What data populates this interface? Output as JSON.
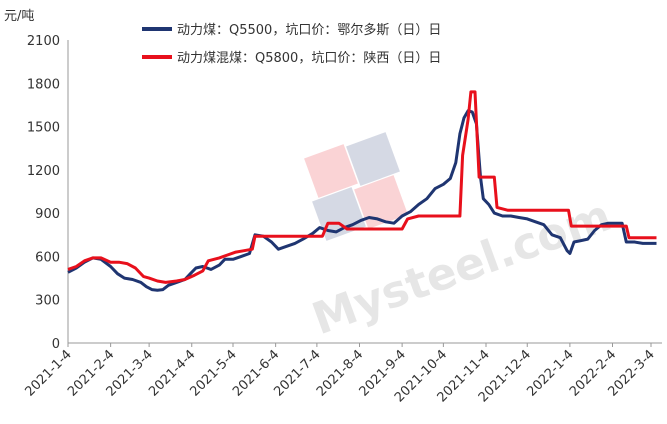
{
  "chart_data": {
    "type": "line",
    "y_unit_label": "元/吨",
    "ylim": [
      0,
      2100
    ],
    "y_ticks": [
      "0",
      "300",
      "600",
      "900",
      "1200",
      "1500",
      "1800",
      "2100"
    ],
    "x_ticks": [
      "2021-1-4",
      "2021-2-4",
      "2021-3-4",
      "2021-4-4",
      "2021-5-4",
      "2021-6-4",
      "2021-7-4",
      "2021-8-4",
      "2021-9-4",
      "2021-10-4",
      "2021-11-4",
      "2021-12-4",
      "2022-1-4",
      "2022-2-4",
      "2022-3-4"
    ],
    "grid": false,
    "legend_position": "top",
    "series": [
      {
        "name": "动力煤：Q5500，坑口价：鄂尔多斯（日）日",
        "color": "#1f3571",
        "points": [
          [
            "2021-01-04",
            490
          ],
          [
            "2021-01-10",
            520
          ],
          [
            "2021-01-16",
            560
          ],
          [
            "2021-01-22",
            590
          ],
          [
            "2021-01-28",
            580
          ],
          [
            "2021-02-04",
            530
          ],
          [
            "2021-02-09",
            480
          ],
          [
            "2021-02-14",
            450
          ],
          [
            "2021-02-20",
            440
          ],
          [
            "2021-02-26",
            420
          ],
          [
            "2021-03-02",
            390
          ],
          [
            "2021-03-06",
            370
          ],
          [
            "2021-03-10",
            365
          ],
          [
            "2021-03-14",
            370
          ],
          [
            "2021-03-18",
            400
          ],
          [
            "2021-03-24",
            420
          ],
          [
            "2021-03-30",
            440
          ],
          [
            "2021-04-03",
            480
          ],
          [
            "2021-04-07",
            520
          ],
          [
            "2021-04-12",
            530
          ],
          [
            "2021-04-18",
            510
          ],
          [
            "2021-04-24",
            540
          ],
          [
            "2021-04-28",
            580
          ],
          [
            "2021-05-04",
            580
          ],
          [
            "2021-05-10",
            600
          ],
          [
            "2021-05-16",
            620
          ],
          [
            "2021-05-20",
            750
          ],
          [
            "2021-05-26",
            740
          ],
          [
            "2021-06-01",
            700
          ],
          [
            "2021-06-06",
            650
          ],
          [
            "2021-06-12",
            670
          ],
          [
            "2021-06-18",
            690
          ],
          [
            "2021-06-24",
            720
          ],
          [
            "2021-07-01",
            760
          ],
          [
            "2021-07-06",
            800
          ],
          [
            "2021-07-12",
            780
          ],
          [
            "2021-07-18",
            770
          ],
          [
            "2021-07-24",
            800
          ],
          [
            "2021-07-30",
            820
          ],
          [
            "2021-08-05",
            850
          ],
          [
            "2021-08-11",
            870
          ],
          [
            "2021-08-17",
            860
          ],
          [
            "2021-08-23",
            840
          ],
          [
            "2021-08-29",
            830
          ],
          [
            "2021-09-04",
            880
          ],
          [
            "2021-09-10",
            910
          ],
          [
            "2021-09-16",
            960
          ],
          [
            "2021-09-22",
            1000
          ],
          [
            "2021-09-28",
            1070
          ],
          [
            "2021-10-04",
            1100
          ],
          [
            "2021-10-09",
            1140
          ],
          [
            "2021-10-13",
            1250
          ],
          [
            "2021-10-16",
            1450
          ],
          [
            "2021-10-19",
            1560
          ],
          [
            "2021-10-22",
            1610
          ],
          [
            "2021-10-25",
            1600
          ],
          [
            "2021-10-28",
            1520
          ],
          [
            "2021-10-31",
            1150
          ],
          [
            "2021-11-02",
            1000
          ],
          [
            "2021-11-06",
            960
          ],
          [
            "2021-11-10",
            900
          ],
          [
            "2021-11-16",
            880
          ],
          [
            "2021-11-22",
            880
          ],
          [
            "2021-11-28",
            870
          ],
          [
            "2021-12-04",
            860
          ],
          [
            "2021-12-10",
            840
          ],
          [
            "2021-12-16",
            820
          ],
          [
            "2021-12-22",
            750
          ],
          [
            "2021-12-28",
            730
          ],
          [
            "2022-01-02",
            640
          ],
          [
            "2022-01-04",
            620
          ],
          [
            "2022-01-07",
            700
          ],
          [
            "2022-01-12",
            710
          ],
          [
            "2022-01-17",
            720
          ],
          [
            "2022-01-22",
            780
          ],
          [
            "2022-01-27",
            820
          ],
          [
            "2022-02-01",
            830
          ],
          [
            "2022-02-06",
            830
          ],
          [
            "2022-02-11",
            830
          ],
          [
            "2022-02-14",
            700
          ],
          [
            "2022-02-20",
            700
          ],
          [
            "2022-02-26",
            690
          ],
          [
            "2022-03-04",
            690
          ],
          [
            "2022-03-08",
            690
          ]
        ]
      },
      {
        "name": "动力煤混煤：Q5800，坑口价：陕西（日）日",
        "color": "#e8101c",
        "points": [
          [
            "2021-01-04",
            510
          ],
          [
            "2021-01-10",
            530
          ],
          [
            "2021-01-16",
            570
          ],
          [
            "2021-01-22",
            590
          ],
          [
            "2021-01-28",
            590
          ],
          [
            "2021-02-04",
            560
          ],
          [
            "2021-02-10",
            560
          ],
          [
            "2021-02-16",
            550
          ],
          [
            "2021-02-22",
            520
          ],
          [
            "2021-02-28",
            460
          ],
          [
            "2021-03-04",
            450
          ],
          [
            "2021-03-10",
            430
          ],
          [
            "2021-03-16",
            420
          ],
          [
            "2021-03-24",
            430
          ],
          [
            "2021-03-30",
            440
          ],
          [
            "2021-04-06",
            470
          ],
          [
            "2021-04-12",
            500
          ],
          [
            "2021-04-16",
            570
          ],
          [
            "2021-04-24",
            590
          ],
          [
            "2021-04-30",
            610
          ],
          [
            "2021-05-06",
            630
          ],
          [
            "2021-05-12",
            640
          ],
          [
            "2021-05-18",
            650
          ],
          [
            "2021-05-20",
            740
          ],
          [
            "2021-05-28",
            740
          ],
          [
            "2021-06-10",
            740
          ],
          [
            "2021-06-24",
            740
          ],
          [
            "2021-07-01",
            740
          ],
          [
            "2021-07-08",
            740
          ],
          [
            "2021-07-12",
            830
          ],
          [
            "2021-07-20",
            830
          ],
          [
            "2021-07-26",
            790
          ],
          [
            "2021-08-04",
            790
          ],
          [
            "2021-08-20",
            790
          ],
          [
            "2021-09-04",
            790
          ],
          [
            "2021-09-08",
            860
          ],
          [
            "2021-09-16",
            880
          ],
          [
            "2021-10-04",
            880
          ],
          [
            "2021-10-16",
            880
          ],
          [
            "2021-10-18",
            1300
          ],
          [
            "2021-10-22",
            1550
          ],
          [
            "2021-10-24",
            1740
          ],
          [
            "2021-10-27",
            1740
          ],
          [
            "2021-10-30",
            1150
          ],
          [
            "2021-11-10",
            1150
          ],
          [
            "2021-11-12",
            940
          ],
          [
            "2021-11-20",
            920
          ],
          [
            "2021-11-28",
            920
          ],
          [
            "2021-12-04",
            920
          ],
          [
            "2021-12-16",
            920
          ],
          [
            "2021-12-30",
            920
          ],
          [
            "2022-01-03",
            920
          ],
          [
            "2022-01-05",
            810
          ],
          [
            "2022-01-20",
            810
          ],
          [
            "2022-02-01",
            810
          ],
          [
            "2022-02-14",
            810
          ],
          [
            "2022-02-16",
            730
          ],
          [
            "2022-02-26",
            730
          ],
          [
            "2022-03-08",
            730
          ]
        ]
      }
    ]
  }
}
